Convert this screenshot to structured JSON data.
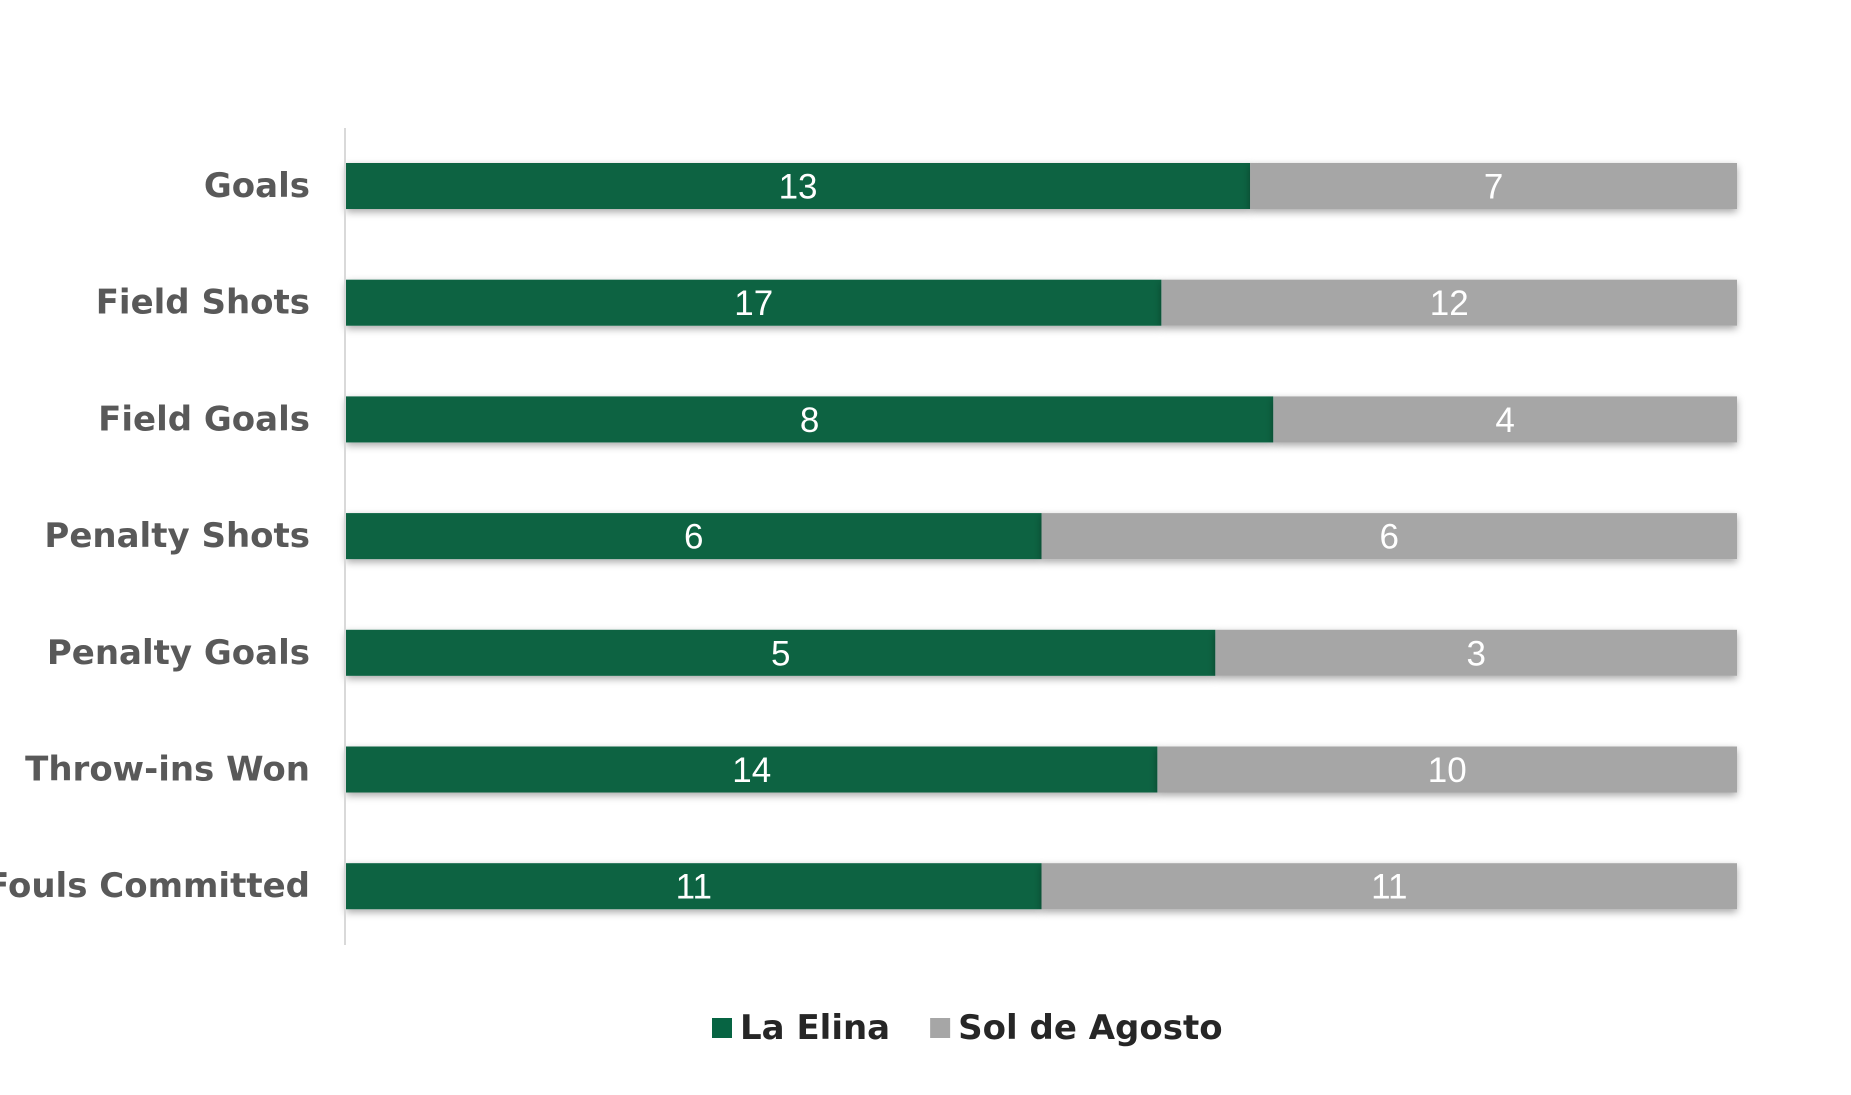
{
  "chart_data": {
    "type": "bar",
    "orientation": "horizontal",
    "stacking": "percent",
    "categories": [
      "Goals",
      "Field Shots",
      "Field Goals",
      "Penalty Shots",
      "Penalty Goals",
      "Throw-ins Won",
      "Fouls Committed"
    ],
    "series": [
      {
        "name": "La Elina",
        "values": [
          13,
          17,
          8,
          6,
          5,
          14,
          11
        ]
      },
      {
        "name": "Sol de Agosto",
        "values": [
          7,
          12,
          4,
          6,
          3,
          10,
          11
        ]
      }
    ],
    "xlim": [
      0,
      1
    ],
    "grid": false,
    "legend_position": "bottom",
    "data_labels": true,
    "colors": {
      "La Elina": "#076443",
      "Sol de Agosto": "#a6a6a6",
      "axis": "#d9d9d9",
      "category_text": "#595959",
      "legend_text": "#262626"
    }
  }
}
